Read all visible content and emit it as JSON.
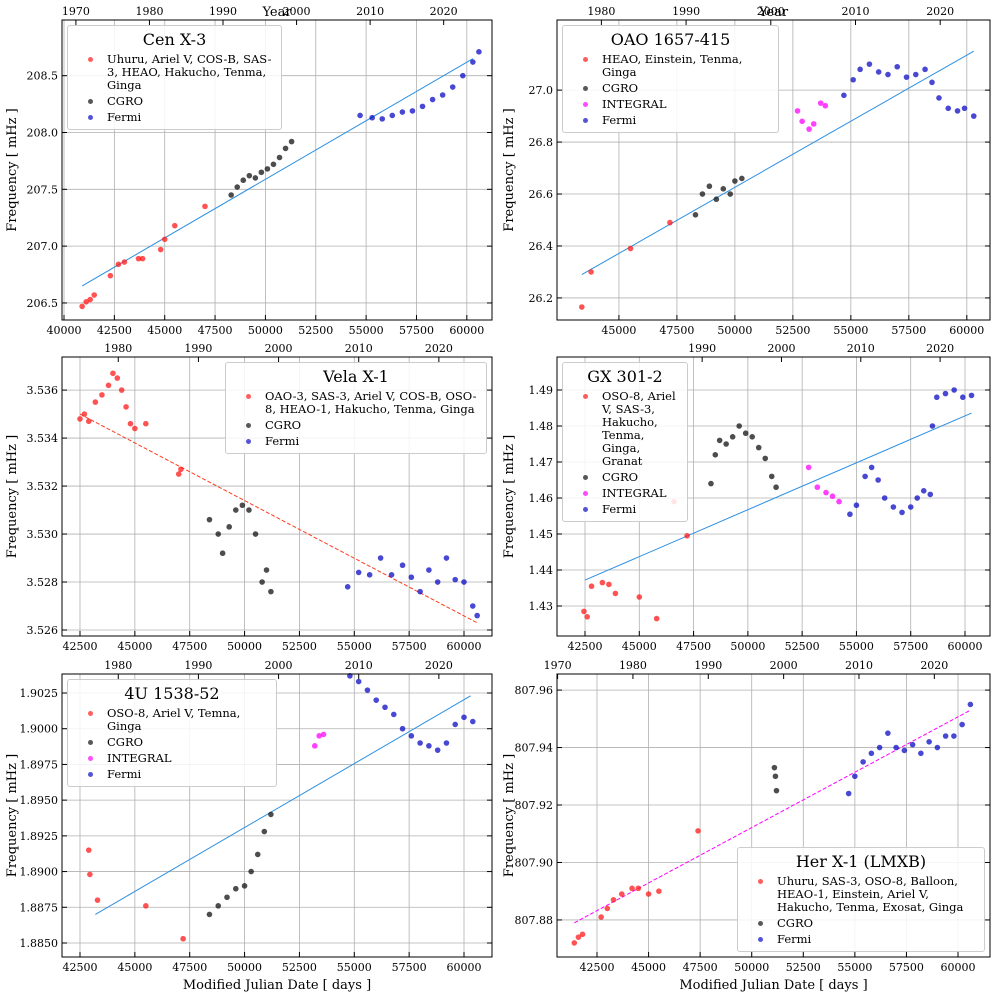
{
  "chart_data": [
    {
      "type": "scatter",
      "title": "Cen X-3",
      "ylabel": "Frequency [ mHz ]",
      "x2label": "Year",
      "legend": "upper left",
      "grid": true,
      "xlim": [
        39900,
        61250
      ],
      "ylim": [
        206.35,
        208.99
      ],
      "x2lim": [
        1968.11,
        2026.57
      ],
      "xticks": [
        40000,
        42500,
        45000,
        47500,
        50000,
        52500,
        55000,
        57500,
        60000
      ],
      "yticks": [
        206.5,
        {
          "value": 207,
          "label": "207.0"
        },
        207.5,
        {
          "value": 208,
          "label": "208.0"
        },
        208.5
      ],
      "x2ticks": [
        1970,
        1980,
        1990,
        2000,
        2010,
        2020
      ],
      "fit": {
        "color": "#2b8fe3",
        "style": "solid",
        "x": [
          40900,
          60300
        ],
        "y": [
          206.65,
          208.65
        ]
      },
      "series": [
        {
          "name": "Uhuru, Ariel V, COS-B, SAS-3, HEAO, Hakucho, Tenma, Ginga",
          "color": "#ff1a1a",
          "x": [
            40900,
            41100,
            41300,
            41500,
            42300,
            42700,
            43000,
            43700,
            43900,
            44800,
            45000,
            45500,
            47000
          ],
          "values": [
            206.47,
            206.51,
            206.53,
            206.57,
            206.74,
            206.84,
            206.86,
            206.89,
            206.89,
            206.97,
            207.06,
            207.18,
            207.35
          ]
        },
        {
          "name": "CGRO",
          "color": "#111111",
          "x": [
            48300,
            48600,
            48900,
            49200,
            49500,
            49800,
            50100,
            50400,
            50700,
            51000,
            51300
          ],
          "values": [
            207.45,
            207.52,
            207.58,
            207.62,
            207.6,
            207.65,
            207.68,
            207.72,
            207.78,
            207.86,
            207.92
          ]
        },
        {
          "name": "Fermi",
          "color": "#0b0bc4",
          "x": [
            54700,
            55300,
            55800,
            56300,
            56800,
            57300,
            57800,
            58300,
            58800,
            59300,
            59800,
            60300,
            60600
          ],
          "values": [
            208.15,
            208.13,
            208.12,
            208.15,
            208.18,
            208.19,
            208.23,
            208.29,
            208.33,
            208.4,
            208.5,
            208.62,
            208.71
          ]
        }
      ]
    },
    {
      "type": "scatter",
      "title": "OAO 1657-415",
      "ylabel": "Frequency [ mHz ]",
      "x2label": "Year",
      "legend": "upper left",
      "grid": true,
      "xlim": [
        42330,
        61000
      ],
      "ylim": [
        26.115,
        27.27
      ],
      "x2lim": [
        1974.76,
        2025.88
      ],
      "xticks": [
        45000,
        47500,
        50000,
        52500,
        55000,
        57500,
        60000
      ],
      "yticks": [
        26.2,
        26.4,
        26.6,
        26.8,
        {
          "value": 27,
          "label": "27.0"
        }
      ],
      "x2ticks": [
        1980,
        1990,
        2000,
        2010,
        2020
      ],
      "fit": {
        "color": "#2b8fe3",
        "style": "solid",
        "x": [
          43400,
          60300
        ],
        "y": [
          26.29,
          27.15
        ]
      },
      "series": [
        {
          "name": "HEAO, Einstein, Tenma, Ginga",
          "color": "#ff1a1a",
          "x": [
            43400,
            43800,
            45500,
            47200
          ],
          "values": [
            26.165,
            26.3,
            26.39,
            26.49
          ]
        },
        {
          "name": "CGRO",
          "color": "#111111",
          "x": [
            48300,
            48600,
            48900,
            49200,
            49500,
            49800,
            50000,
            50300
          ],
          "values": [
            26.52,
            26.6,
            26.63,
            26.58,
            26.62,
            26.6,
            26.65,
            26.66
          ]
        },
        {
          "name": "INTEGRAL",
          "color": "#ff00ff",
          "x": [
            52700,
            52900,
            53200,
            53400,
            53700,
            53900
          ],
          "values": [
            26.92,
            26.88,
            26.85,
            26.87,
            26.95,
            26.94
          ]
        },
        {
          "name": "Fermi",
          "color": "#0b0bc4",
          "x": [
            54700,
            55100,
            55400,
            55800,
            56200,
            56600,
            57000,
            57400,
            57800,
            58200,
            58500,
            58800,
            59200,
            59600,
            59900,
            60300
          ],
          "values": [
            26.98,
            27.04,
            27.08,
            27.1,
            27.07,
            27.06,
            27.09,
            27.05,
            27.06,
            27.08,
            27.03,
            26.97,
            26.93,
            26.92,
            26.93,
            26.9
          ]
        }
      ]
    },
    {
      "type": "scatter",
      "title": "Vela X-1",
      "ylabel": "Frequency [ mHz ]",
      "legend": "upper right",
      "grid": true,
      "xlim": [
        41680,
        61276
      ],
      "ylim": [
        3.52575,
        3.53738
      ],
      "x2lim": [
        1972.98,
        2026.63
      ],
      "xticks": [
        42500,
        45000,
        47500,
        50000,
        52500,
        55000,
        57500,
        60000
      ],
      "yticks": [
        3.526,
        3.528,
        {
          "value": 3.53,
          "label": "3.530"
        },
        3.532,
        3.534,
        3.536
      ],
      "x2ticks": [
        1980,
        1990,
        2000,
        2010,
        2020
      ],
      "fit": {
        "color": "#ff3b1f",
        "style": "dashed",
        "x": [
          42500,
          60600
        ],
        "y": [
          3.535,
          3.5263
        ]
      },
      "series": [
        {
          "name": "OAO-3, SAS-3, Ariel V, COS-B, OSO-8, HEAO-1, Hakucho, Tenma, Ginga",
          "color": "#ff1a1a",
          "x": [
            42500,
            42700,
            42900,
            43200,
            43500,
            43800,
            44000,
            44200,
            44400,
            44600,
            44800,
            45000,
            45500,
            47000,
            47100
          ],
          "values": [
            3.5348,
            3.535,
            3.5347,
            3.5355,
            3.5358,
            3.5362,
            3.5367,
            3.5365,
            3.536,
            3.5353,
            3.5346,
            3.5344,
            3.5346,
            3.5325,
            3.5327
          ]
        },
        {
          "name": "CGRO",
          "color": "#111111",
          "x": [
            48400,
            48800,
            49000,
            49300,
            49600,
            49900,
            50200,
            50500,
            50800,
            51000,
            51200
          ],
          "values": [
            3.5306,
            3.53,
            3.5292,
            3.5303,
            3.531,
            3.5312,
            3.531,
            3.53,
            3.528,
            3.5285,
            3.5276
          ]
        },
        {
          "name": "Fermi",
          "color": "#0b0bc4",
          "x": [
            54700,
            55200,
            55700,
            56200,
            56700,
            57200,
            57600,
            58000,
            58400,
            58800,
            59200,
            59600,
            60000,
            60400,
            60600
          ],
          "values": [
            3.5278,
            3.5284,
            3.5283,
            3.529,
            3.5283,
            3.5287,
            3.5282,
            3.5276,
            3.5285,
            3.528,
            3.529,
            3.5281,
            3.528,
            3.527,
            3.5266
          ]
        }
      ]
    },
    {
      "type": "scatter",
      "title": "GX 301-2",
      "ylabel": "Frequency [ mHz ]",
      "legend": "upper left",
      "grid": true,
      "xlim": [
        41210,
        61151
      ],
      "ylim": [
        1.42167,
        1.49917
      ],
      "x2lim": [
        1971.7,
        2026.29
      ],
      "xticks": [
        42500,
        45000,
        47500,
        50000,
        52500,
        55000,
        57500,
        60000
      ],
      "yticks": [
        1.43,
        1.44,
        1.45,
        1.46,
        1.47,
        1.48,
        1.49
      ],
      "x2ticks": [
        1990,
        2000,
        2010,
        2020
      ],
      "fit": {
        "color": "#2b8fe3",
        "style": "solid",
        "x": [
          42500,
          60300
        ],
        "y": [
          1.4372,
          1.4836
        ]
      },
      "series": [
        {
          "name": "OSO-8, Ariel V, SAS-3, Hakucho, Tenma, Ginga, Granat",
          "color": "#ff1a1a",
          "x": [
            42450,
            42600,
            42800,
            43300,
            43600,
            43900,
            45000,
            45800,
            46600,
            47200
          ],
          "values": [
            1.4285,
            1.427,
            1.4355,
            1.4365,
            1.436,
            1.4335,
            1.4325,
            1.4265,
            1.459,
            1.4495
          ]
        },
        {
          "name": "CGRO",
          "color": "#111111",
          "x": [
            48300,
            48500,
            48700,
            49000,
            49300,
            49600,
            49900,
            50200,
            50500,
            50800,
            51100,
            51300
          ],
          "values": [
            1.464,
            1.472,
            1.476,
            1.475,
            1.477,
            1.48,
            1.478,
            1.477,
            1.474,
            1.471,
            1.466,
            1.463
          ]
        },
        {
          "name": "INTEGRAL",
          "color": "#ff00ff",
          "x": [
            52800,
            53200,
            53600,
            53900,
            54200
          ],
          "values": [
            1.4685,
            1.463,
            1.4615,
            1.4605,
            1.459
          ]
        },
        {
          "name": "Fermi",
          "color": "#0b0bc4",
          "x": [
            54700,
            55000,
            55400,
            55700,
            56000,
            56300,
            56700,
            57100,
            57500,
            57800,
            58100,
            58400,
            58500,
            58700,
            59100,
            59500,
            59900,
            60300
          ],
          "values": [
            1.4555,
            1.458,
            1.466,
            1.4685,
            1.465,
            1.46,
            1.4575,
            1.456,
            1.4575,
            1.46,
            1.462,
            1.461,
            1.48,
            1.488,
            1.489,
            1.49,
            1.488,
            1.4885
          ]
        }
      ]
    },
    {
      "type": "scatter",
      "title": "4U 1538-52",
      "ylabel": "Frequency [ mHz ]",
      "xlabel": "Modified Julian Date [ days ]",
      "legend": "upper left",
      "grid": true,
      "xlim": [
        41680,
        61276
      ],
      "ylim": [
        1.88402,
        1.90383
      ],
      "x2lim": [
        1972.98,
        2026.63
      ],
      "xticks": [
        42500,
        45000,
        47500,
        50000,
        52500,
        55000,
        57500,
        60000
      ],
      "yticks": [
        {
          "value": 1.885,
          "label": "1.8850"
        },
        1.8875,
        {
          "value": 1.89,
          "label": "1.8900"
        },
        1.8925,
        {
          "value": 1.895,
          "label": "1.8950"
        },
        1.8975,
        {
          "value": 1.9,
          "label": "1.9000"
        },
        1.9025
      ],
      "x2ticks": [
        1980,
        1990,
        2000,
        2010,
        2020
      ],
      "fit": {
        "color": "#2b8fe3",
        "style": "solid",
        "x": [
          43200,
          60300
        ],
        "y": [
          1.887,
          1.9023
        ]
      },
      "series": [
        {
          "name": "OSO-8, Ariel V, Temna, Ginga",
          "color": "#ff1a1a",
          "x": [
            42900,
            42950,
            43300,
            45500,
            47200
          ],
          "values": [
            1.8915,
            1.8898,
            1.888,
            1.8876,
            1.8853
          ]
        },
        {
          "name": "CGRO",
          "color": "#111111",
          "x": [
            48400,
            48800,
            49200,
            49600,
            50000,
            50300,
            50600,
            50900,
            51200
          ],
          "values": [
            1.887,
            1.8876,
            1.8882,
            1.8888,
            1.889,
            1.89,
            1.8912,
            1.8928,
            1.894
          ]
        },
        {
          "name": "INTEGRAL",
          "color": "#ff00ff",
          "x": [
            53200,
            53400,
            53600
          ],
          "values": [
            1.8988,
            1.8995,
            1.8996
          ]
        },
        {
          "name": "Fermi",
          "color": "#0b0bc4",
          "x": [
            54800,
            55200,
            55600,
            56000,
            56400,
            56800,
            57200,
            57600,
            58000,
            58400,
            58800,
            59200,
            59600,
            60000,
            60400
          ],
          "values": [
            1.9037,
            1.9033,
            1.9027,
            1.902,
            1.9015,
            1.901,
            1.9,
            1.8995,
            1.899,
            1.8988,
            1.8985,
            1.899,
            1.9003,
            1.9008,
            1.9005
          ]
        }
      ]
    },
    {
      "type": "scatter",
      "title": "Her X-1 (LMXB)",
      "ylabel": "Frequency [ mHz ]",
      "xlabel": "Modified Julian Date [ days ]",
      "legend": "lower right",
      "grid": true,
      "xlim": [
        40561,
        61551
      ],
      "ylim": [
        807.8671,
        807.9656
      ],
      "x2lim": [
        1969.92,
        2027.39
      ],
      "xticks": [
        42500,
        45000,
        47500,
        50000,
        52500,
        55000,
        57500,
        60000
      ],
      "yticks": [
        807.88,
        {
          "value": 807.9,
          "label": "807.90"
        },
        807.92,
        807.94,
        807.96
      ],
      "x2ticks": [
        1970,
        1980,
        1990,
        2000,
        2010,
        2020
      ],
      "fit": {
        "color": "#ff00ff",
        "style": "dashed",
        "x": [
          41400,
          60600
        ],
        "y": [
          807.879,
          807.953
        ]
      },
      "series": [
        {
          "name": "Uhuru, SAS-3, OSO-8, Balloon, HEAO-1, Einstein, Ariel V, Hakucho, Tenma, Exosat, Ginga",
          "color": "#ff1a1a",
          "x": [
            41400,
            41600,
            41800,
            42700,
            43000,
            43300,
            43700,
            44200,
            44500,
            45000,
            45500,
            47400
          ],
          "values": [
            807.872,
            807.874,
            807.875,
            807.881,
            807.884,
            807.887,
            807.889,
            807.891,
            807.891,
            807.889,
            807.89,
            807.911
          ]
        },
        {
          "name": "CGRO",
          "color": "#111111",
          "x": [
            51100,
            51150,
            51200
          ],
          "values": [
            807.933,
            807.93,
            807.925
          ]
        },
        {
          "name": "Fermi",
          "color": "#0b0bc4",
          "x": [
            54700,
            55000,
            55400,
            55800,
            56200,
            56600,
            57000,
            57400,
            57800,
            58200,
            58600,
            59000,
            59400,
            59800,
            60200,
            60600
          ],
          "values": [
            807.924,
            807.93,
            807.935,
            807.938,
            807.94,
            807.945,
            807.94,
            807.939,
            807.941,
            807.938,
            807.942,
            807.94,
            807.944,
            807.944,
            807.948,
            807.955
          ]
        }
      ]
    }
  ]
}
